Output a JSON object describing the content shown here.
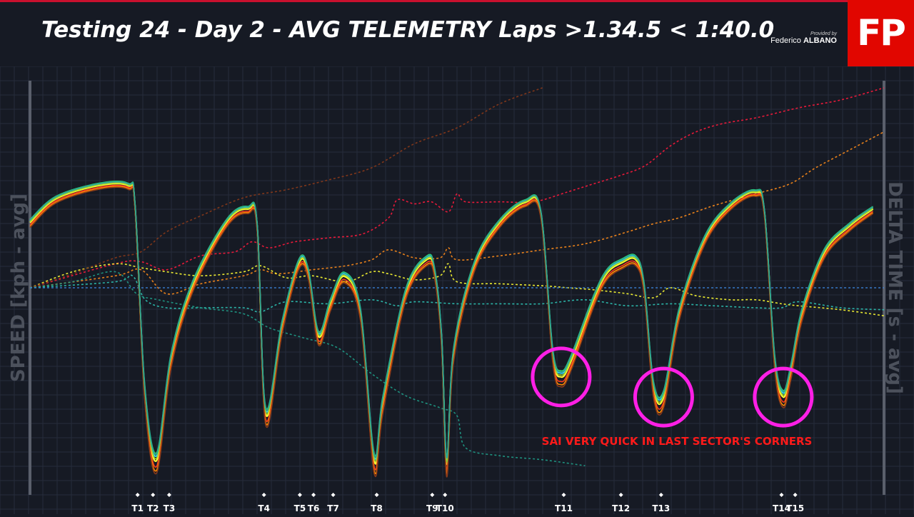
{
  "header": {
    "title": "Testing 24 - Day 2 - AVG TELEMETRY Laps >1.34.5 < 1:40.0",
    "provided_by": "Provided by",
    "author_first": "Federico",
    "author_last": "ALBANO",
    "logo_text": "FP"
  },
  "colors": {
    "background": "#161a24",
    "grid": "#262c3b",
    "accent_red": "#e10600",
    "annotation_magenta": "#ff1fe6",
    "annotation_red": "#ff1a1a"
  },
  "chart_data": {
    "type": "line",
    "ylabel": "SPEED [kph - avg]",
    "y2label": "DELTA TIME [s - avg]",
    "grid": true,
    "legend": "none",
    "x_range": [
      0,
      100
    ],
    "y_range": [
      0,
      100
    ],
    "y2_range": [
      -3,
      3
    ],
    "corners": [
      {
        "label": "T1",
        "x": 12.6
      },
      {
        "label": "T2",
        "x": 14.4
      },
      {
        "label": "T3",
        "x": 16.3
      },
      {
        "label": "T4",
        "x": 27.4
      },
      {
        "label": "T5",
        "x": 31.6
      },
      {
        "label": "T6",
        "x": 33.2
      },
      {
        "label": "T7",
        "x": 35.5
      },
      {
        "label": "T8",
        "x": 40.6
      },
      {
        "label": "T9",
        "x": 47.1
      },
      {
        "label": "T10",
        "x": 48.6
      },
      {
        "label": "T11",
        "x": 62.5
      },
      {
        "label": "T12",
        "x": 69.2
      },
      {
        "label": "T13",
        "x": 73.9
      },
      {
        "label": "T14",
        "x": 88.0
      },
      {
        "label": "T15",
        "x": 89.6
      }
    ],
    "speed_series": [
      {
        "color": "#ffff33",
        "offset": 0
      },
      {
        "color": "#33d9ff",
        "offset": 1.2
      },
      {
        "color": "#2ed573",
        "offset": 2.0
      },
      {
        "color": "#ff3b1f",
        "offset": -1.5
      },
      {
        "color": "#ff8c00",
        "offset": -2.5
      },
      {
        "color": "#8b3a1a",
        "offset": -3.2
      },
      {
        "color": "#9acd32",
        "offset": 0.6
      },
      {
        "color": "#2aa198",
        "offset": 1.6
      }
    ],
    "speed_reference": {
      "x": [
        0,
        3,
        8,
        11.5,
        12.3,
        13.4,
        14.8,
        16.5,
        19,
        23,
        25.5,
        26.6,
        27.6,
        29.5,
        31.5,
        32.6,
        33.8,
        35.2,
        36.8,
        38.7,
        40.3,
        41.3,
        44,
        46.5,
        47.4,
        48.2,
        48.8,
        49.6,
        52,
        55,
        58,
        59.8,
        61.2,
        62.2,
        63.4,
        66,
        67.6,
        69.3,
        70.9,
        71.9,
        73,
        74.2,
        76,
        79,
        82,
        84.9,
        86,
        87.2,
        88.2,
        89.1,
        90.4,
        93,
        96,
        98.7
      ],
      "values": [
        79,
        86,
        90,
        90,
        84,
        30,
        8,
        38,
        60,
        79,
        83,
        78,
        22,
        48,
        67,
        64,
        45,
        55,
        63,
        52,
        8,
        25,
        58,
        68,
        64,
        44,
        7,
        40,
        66,
        79,
        85,
        82,
        40,
        33,
        38,
        56,
        64,
        67,
        68,
        60,
        30,
        27,
        52,
        74,
        84,
        88,
        82,
        38,
        27,
        35,
        52,
        70,
        78,
        83
      ]
    },
    "delta_series": [
      {
        "color": "#ff1a3c",
        "x": [
          0,
          10,
          13,
          16,
          20,
          24,
          26,
          28,
          31,
          35,
          39,
          42,
          43,
          45,
          47,
          49,
          50,
          51,
          55,
          59,
          63,
          66,
          69,
          72,
          75,
          78,
          81,
          85,
          90,
          95,
          100
        ],
        "y": [
          0,
          1.2,
          1.3,
          0.9,
          1.6,
          1.8,
          2.3,
          2.0,
          2.3,
          2.5,
          2.7,
          3.5,
          4.4,
          4.2,
          4.3,
          3.8,
          4.7,
          4.3,
          4.3,
          4.3,
          4.8,
          5.2,
          5.6,
          6.1,
          7.1,
          7.8,
          8.2,
          8.5,
          9.0,
          9.4,
          10
        ]
      },
      {
        "color": "#ff8c1a",
        "x": [
          0,
          10,
          13,
          16,
          20,
          25,
          27,
          29,
          33,
          37,
          40,
          42,
          45,
          48,
          49,
          50,
          55,
          60,
          65,
          70,
          73,
          76,
          80,
          85,
          89,
          92,
          96,
          100
        ],
        "y": [
          0,
          0.6,
          0.9,
          -0.3,
          0.2,
          0.6,
          0.9,
          0.7,
          0.9,
          1.1,
          1.4,
          1.9,
          1.5,
          1.5,
          2.0,
          1.4,
          1.6,
          1.9,
          2.2,
          2.8,
          3.2,
          3.5,
          4.1,
          4.7,
          5.2,
          6.0,
          6.9,
          7.8
        ]
      },
      {
        "color": "#ffff33",
        "x": [
          0,
          5,
          10,
          13,
          16,
          20,
          25,
          27,
          30,
          33,
          37,
          40,
          42,
          45,
          48,
          49,
          50,
          55,
          60,
          63,
          66,
          70,
          73,
          75,
          78,
          82,
          85,
          88,
          90,
          95,
          100
        ],
        "y": [
          0,
          0.8,
          1.2,
          1.0,
          0.8,
          0.6,
          0.8,
          1.1,
          0.5,
          0.6,
          0.3,
          0.8,
          0.7,
          0.4,
          0.6,
          1.2,
          0.3,
          0.2,
          0.1,
          0,
          -0.1,
          -0.3,
          -0.5,
          0,
          -0.4,
          -0.6,
          -0.6,
          -0.8,
          -0.9,
          -1.1,
          -1.4
        ]
      },
      {
        "color": "#8b3a1a",
        "x": [
          0,
          5,
          10,
          13,
          16,
          20,
          25,
          30,
          35,
          40,
          45,
          50,
          55,
          60
        ],
        "y": [
          0,
          0.7,
          1.5,
          1.8,
          2.8,
          3.6,
          4.5,
          4.9,
          5.4,
          6.0,
          7.2,
          8.0,
          9.2,
          10
        ]
      },
      {
        "color": "#2ec4b6",
        "x": [
          0,
          10,
          12,
          13.5,
          16,
          20,
          25,
          27,
          30,
          35,
          40,
          43,
          45,
          50,
          55,
          60,
          65,
          70,
          75,
          80,
          85,
          88,
          90,
          95,
          100
        ],
        "y": [
          0,
          0.3,
          0.6,
          -0.6,
          -1.0,
          -1.0,
          -1.0,
          -1.2,
          -0.7,
          -0.8,
          -0.6,
          -0.9,
          -0.7,
          -0.8,
          -0.8,
          -0.8,
          -0.6,
          -0.9,
          -0.8,
          -0.9,
          -1.0,
          -1.0,
          -0.7,
          -1.0,
          -1.1
        ]
      },
      {
        "color": "#1f9e89",
        "x": [
          0,
          5,
          10,
          12.5,
          15,
          20,
          25,
          28,
          32,
          36,
          40,
          44,
          48,
          50,
          51,
          55,
          60,
          65
        ],
        "y": [
          0,
          0.3,
          0.8,
          -0.3,
          -0.6,
          -1.0,
          -1.3,
          -2.0,
          -2.5,
          -3.0,
          -4.3,
          -5.4,
          -6.0,
          -6.4,
          -8.0,
          -8.4,
          -8.6,
          -8.9
        ]
      },
      {
        "color": "#3b82d6",
        "x": [
          0,
          100
        ],
        "y": [
          0,
          0
        ]
      }
    ],
    "annotations": {
      "note": "SAI VERY QUICK IN LAST SECTOR'S CORNERS",
      "highlight_corners": [
        "T11",
        "T13",
        "T15"
      ]
    }
  }
}
